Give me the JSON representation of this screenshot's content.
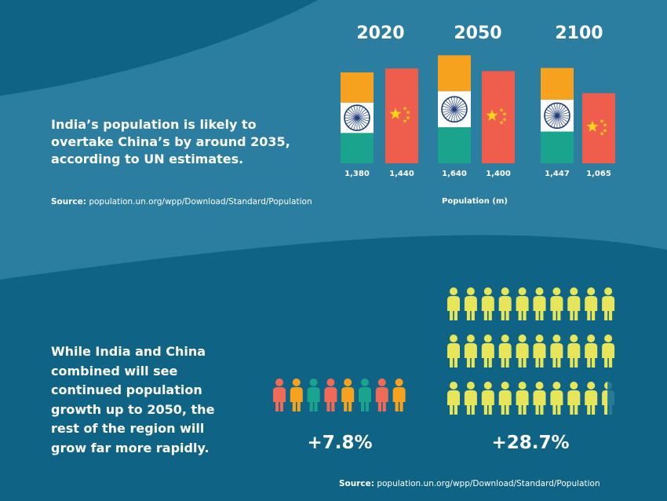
{
  "headline": "India’s population is likely to overtake China’s by around 2035, according to UN estimates.",
  "source_top": {
    "label": "Source:",
    "text": " population.un.org/wpp/Download/Standard/Population"
  },
  "source_bottom": {
    "label": "Source:",
    "text": " population.un.org/wpp/Download/Standard/Population"
  },
  "paragraph": "While India and China combined will see continued population growth up to 2050, the rest of the region will grow far more rapidly.",
  "colors": {
    "india_saffron": "#f6a21e",
    "india_green": "#1aa38d",
    "ashoka_blue": "#1d3e7a",
    "china_red": "#ef5d4c",
    "china_star": "#f7d51d",
    "person_yellow": "#e7e65a"
  },
  "chart_data": [
    {
      "type": "bar",
      "categories": [
        "2020",
        "2050",
        "2100"
      ],
      "series": [
        {
          "values": [
            1380,
            1640,
            1447
          ]
        },
        {
          "values": [
            1440,
            1400,
            1065
          ]
        }
      ],
      "value_labels": [
        [
          "1,380",
          "1,440"
        ],
        [
          "1,640",
          "1,400"
        ],
        [
          "1,447",
          "1,065"
        ]
      ],
      "xlabel": "Population (m)"
    },
    {
      "type": "bar",
      "categories": [
        "+7.8%",
        "+28.7%"
      ],
      "values": [
        7.8,
        28.7
      ]
    }
  ]
}
